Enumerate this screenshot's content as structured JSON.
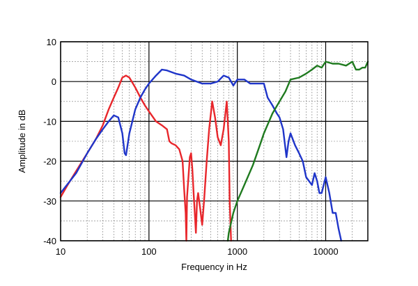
{
  "chart_data": {
    "type": "line",
    "title": "",
    "xlabel": "Frequency in Hz",
    "ylabel": "Amplitude in dB",
    "xscale": "log",
    "xlim": [
      10,
      30000
    ],
    "ylim": [
      -40,
      10
    ],
    "xticks": [
      {
        "value": 10,
        "label": "10"
      },
      {
        "value": 100,
        "label": "100"
      },
      {
        "value": 1000,
        "label": "1000"
      },
      {
        "value": 10000,
        "label": "10000"
      }
    ],
    "yticks": [
      {
        "value": 10,
        "label": "10"
      },
      {
        "value": 0,
        "label": "0"
      },
      {
        "value": -10,
        "label": "-10"
      },
      {
        "value": -20,
        "label": "-20"
      },
      {
        "value": -30,
        "label": "-30"
      },
      {
        "value": -40,
        "label": "-40"
      }
    ],
    "grid": true,
    "legend": "none",
    "series": [
      {
        "color": "#e8262b",
        "points": [
          [
            10,
            -29
          ],
          [
            12,
            -26
          ],
          [
            15,
            -22.5
          ],
          [
            20,
            -18
          ],
          [
            25,
            -14.5
          ],
          [
            30,
            -11
          ],
          [
            35,
            -7
          ],
          [
            40,
            -4
          ],
          [
            45,
            -1.5
          ],
          [
            50,
            1
          ],
          [
            55,
            1.5
          ],
          [
            60,
            1
          ],
          [
            70,
            -1.5
          ],
          [
            80,
            -4
          ],
          [
            90,
            -6
          ],
          [
            100,
            -7.5
          ],
          [
            120,
            -10
          ],
          [
            140,
            -11
          ],
          [
            160,
            -12
          ],
          [
            170,
            -15
          ],
          [
            180,
            -15.5
          ],
          [
            200,
            -16
          ],
          [
            220,
            -17
          ],
          [
            240,
            -20
          ],
          [
            250,
            -27
          ],
          [
            260,
            -33
          ],
          [
            265,
            -40
          ],
          [
            270,
            -29
          ],
          [
            280,
            -24
          ],
          [
            290,
            -19
          ],
          [
            300,
            -18
          ],
          [
            310,
            -22
          ],
          [
            320,
            -28
          ],
          [
            330,
            -33
          ],
          [
            340,
            -38
          ],
          [
            350,
            -30
          ],
          [
            360,
            -28
          ],
          [
            380,
            -32
          ],
          [
            400,
            -36
          ],
          [
            420,
            -30
          ],
          [
            450,
            -20
          ],
          [
            480,
            -12
          ],
          [
            520,
            -5
          ],
          [
            560,
            -9
          ],
          [
            600,
            -14
          ],
          [
            650,
            -16
          ],
          [
            700,
            -12
          ],
          [
            760,
            -5
          ],
          [
            800,
            -15
          ],
          [
            820,
            -30
          ],
          [
            850,
            -40
          ]
        ]
      },
      {
        "color": "#1f35c9",
        "points": [
          [
            10,
            -28
          ],
          [
            15,
            -23
          ],
          [
            20,
            -18
          ],
          [
            25,
            -14.5
          ],
          [
            30,
            -12
          ],
          [
            35,
            -10
          ],
          [
            40,
            -8.5
          ],
          [
            45,
            -9
          ],
          [
            50,
            -13
          ],
          [
            53,
            -18
          ],
          [
            55,
            -18.5
          ],
          [
            60,
            -13
          ],
          [
            70,
            -7
          ],
          [
            80,
            -4
          ],
          [
            90,
            -2
          ],
          [
            100,
            -0.5
          ],
          [
            120,
            1.5
          ],
          [
            140,
            3
          ],
          [
            160,
            2.8
          ],
          [
            200,
            2
          ],
          [
            250,
            1.5
          ],
          [
            300,
            0.5
          ],
          [
            400,
            -0.5
          ],
          [
            500,
            -0.5
          ],
          [
            600,
            0
          ],
          [
            700,
            1.5
          ],
          [
            800,
            1
          ],
          [
            900,
            -1
          ],
          [
            1000,
            0.5
          ],
          [
            1200,
            0.5
          ],
          [
            1400,
            -0.5
          ],
          [
            1700,
            -0.5
          ],
          [
            2000,
            -0.5
          ],
          [
            2200,
            -4
          ],
          [
            2500,
            -6
          ],
          [
            2800,
            -8
          ],
          [
            3000,
            -9
          ],
          [
            3300,
            -12
          ],
          [
            3600,
            -19
          ],
          [
            3800,
            -15
          ],
          [
            4000,
            -13
          ],
          [
            4500,
            -16
          ],
          [
            5000,
            -18
          ],
          [
            5500,
            -20
          ],
          [
            6000,
            -24
          ],
          [
            7000,
            -26
          ],
          [
            7500,
            -23
          ],
          [
            8000,
            -25
          ],
          [
            8500,
            -28
          ],
          [
            9000,
            -28
          ],
          [
            10000,
            -24
          ],
          [
            11000,
            -28
          ],
          [
            12000,
            -33
          ],
          [
            13000,
            -33
          ],
          [
            14000,
            -37
          ],
          [
            15000,
            -40
          ]
        ]
      },
      {
        "color": "#1f7a1f",
        "points": [
          [
            780,
            -40
          ],
          [
            800,
            -38
          ],
          [
            900,
            -33
          ],
          [
            1000,
            -30
          ],
          [
            1200,
            -26
          ],
          [
            1500,
            -21
          ],
          [
            1800,
            -16
          ],
          [
            2000,
            -13
          ],
          [
            2500,
            -8
          ],
          [
            3000,
            -5
          ],
          [
            3500,
            -2.5
          ],
          [
            4000,
            0.5
          ],
          [
            5000,
            1
          ],
          [
            6000,
            2
          ],
          [
            7000,
            3
          ],
          [
            8000,
            4
          ],
          [
            9000,
            3.5
          ],
          [
            10000,
            5
          ],
          [
            12000,
            4.5
          ],
          [
            14000,
            4.5
          ],
          [
            17000,
            4
          ],
          [
            20000,
            5
          ],
          [
            22000,
            3
          ],
          [
            24000,
            3
          ],
          [
            26000,
            3.5
          ],
          [
            28000,
            3.5
          ],
          [
            30000,
            5
          ]
        ]
      }
    ]
  }
}
